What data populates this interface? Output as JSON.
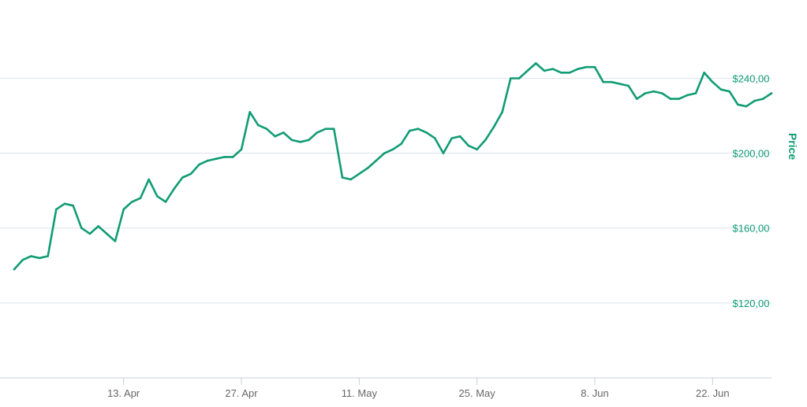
{
  "colors": {
    "line": "#119c74",
    "label": "#119c74",
    "x_tick": "#666666",
    "grid": "#dde3ea",
    "axis": "#c8d0d9"
  },
  "chart_data": {
    "type": "line",
    "title": "",
    "xlabel": "",
    "ylabel": "Price",
    "ylim": [
      80,
      265
    ],
    "xlim": [
      "2020-03-31",
      "2020-06-29"
    ],
    "x_ticks": [
      "13. Apr",
      "27. Apr",
      "11. May",
      "25. May",
      "8. Jun",
      "22. Jun"
    ],
    "y_ticks": [
      "$120,00",
      "$160,00",
      "$200,00",
      "$240,00"
    ],
    "y_tick_values": [
      120,
      160,
      200,
      240
    ],
    "grid": true,
    "legend": "none",
    "series": [
      {
        "x": [
          "2020-03-31",
          "2020-04-01",
          "2020-04-02",
          "2020-04-03",
          "2020-04-04",
          "2020-04-05",
          "2020-04-06",
          "2020-04-07",
          "2020-04-08",
          "2020-04-09",
          "2020-04-10",
          "2020-04-11",
          "2020-04-12",
          "2020-04-13",
          "2020-04-14",
          "2020-04-15",
          "2020-04-16",
          "2020-04-17",
          "2020-04-18",
          "2020-04-19",
          "2020-04-20",
          "2020-04-21",
          "2020-04-22",
          "2020-04-23",
          "2020-04-24",
          "2020-04-25",
          "2020-04-26",
          "2020-04-27",
          "2020-04-28",
          "2020-04-29",
          "2020-04-30",
          "2020-05-01",
          "2020-05-02",
          "2020-05-03",
          "2020-05-04",
          "2020-05-05",
          "2020-05-06",
          "2020-05-07",
          "2020-05-08",
          "2020-05-09",
          "2020-05-10",
          "2020-05-11",
          "2020-05-12",
          "2020-05-13",
          "2020-05-14",
          "2020-05-15",
          "2020-05-16",
          "2020-05-17",
          "2020-05-18",
          "2020-05-19",
          "2020-05-20",
          "2020-05-21",
          "2020-05-22",
          "2020-05-23",
          "2020-05-24",
          "2020-05-25",
          "2020-05-26",
          "2020-05-27",
          "2020-05-28",
          "2020-05-29",
          "2020-05-30",
          "2020-05-31",
          "2020-06-01",
          "2020-06-02",
          "2020-06-03",
          "2020-06-04",
          "2020-06-05",
          "2020-06-06",
          "2020-06-07",
          "2020-06-08",
          "2020-06-09",
          "2020-06-10",
          "2020-06-11",
          "2020-06-12",
          "2020-06-13",
          "2020-06-14",
          "2020-06-15",
          "2020-06-16",
          "2020-06-17",
          "2020-06-18",
          "2020-06-19",
          "2020-06-20",
          "2020-06-21",
          "2020-06-22",
          "2020-06-23",
          "2020-06-24",
          "2020-06-25",
          "2020-06-26",
          "2020-06-27",
          "2020-06-28",
          "2020-06-29"
        ],
        "values": [
          138,
          143,
          145,
          144,
          145,
          170,
          173,
          172,
          160,
          157,
          161,
          157,
          153,
          170,
          174,
          176,
          186,
          177,
          174,
          181,
          187,
          189,
          194,
          196,
          197,
          198,
          198,
          202,
          222,
          215,
          213,
          209,
          211,
          207,
          206,
          207,
          211,
          213,
          213,
          187,
          186,
          189,
          192,
          196,
          200,
          202,
          205,
          212,
          213,
          211,
          208,
          200,
          208,
          209,
          204,
          202,
          207,
          214,
          222,
          240,
          240,
          244,
          248,
          244,
          245,
          243,
          243,
          245,
          246,
          246,
          238,
          238,
          237,
          236,
          229,
          232,
          233,
          232,
          229,
          229,
          231,
          232,
          243,
          238,
          234,
          233,
          226,
          225,
          228,
          229,
          232
        ]
      }
    ]
  }
}
